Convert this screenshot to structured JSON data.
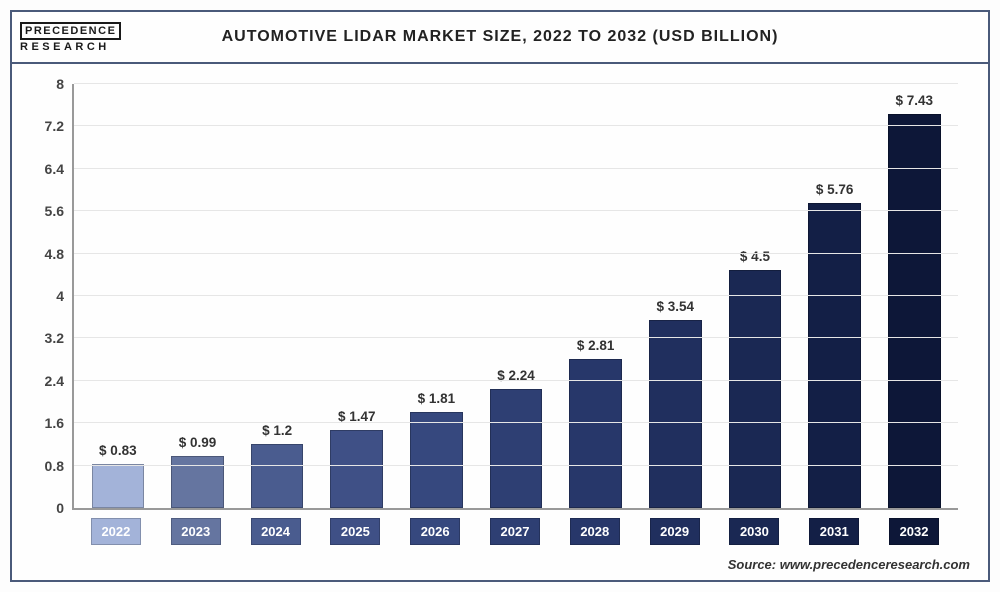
{
  "logo": {
    "top": "PRECEDENCE",
    "bottom": "RESEARCH"
  },
  "title": "AUTOMOTIVE LIDAR MARKET SIZE, 2022 TO 2032 (USD BILLION)",
  "source": "Source: www.precedenceresearch.com",
  "chart": {
    "type": "bar",
    "ylim_max": 8,
    "ytick_step": 0.8,
    "yticks": [
      "0",
      "0.8",
      "1.6",
      "2.4",
      "3.2",
      "4",
      "4.8",
      "5.6",
      "6.4",
      "7.2",
      "8"
    ],
    "categories": [
      "2022",
      "2023",
      "2024",
      "2025",
      "2026",
      "2027",
      "2028",
      "2029",
      "2030",
      "2031",
      "2032"
    ],
    "values": [
      0.83,
      0.99,
      1.2,
      1.47,
      1.81,
      2.24,
      2.81,
      3.54,
      4.5,
      5.76,
      7.43
    ],
    "labels": [
      "$ 0.83",
      "$ 0.99",
      "$ 1.2",
      "$ 1.47",
      "$ 1.81",
      "$ 2.24",
      "$ 2.81",
      "$ 3.54",
      "$ 4.5",
      "$ 5.76",
      "$ 7.43"
    ],
    "bar_colors": [
      "#a3b3d9",
      "#6575a0",
      "#4a5c8f",
      "#3f5086",
      "#36487e",
      "#2e3f73",
      "#27376a",
      "#202f5e",
      "#1a2853",
      "#131f46",
      "#0d1738"
    ],
    "xlabel_colors": [
      "#a3b3d9",
      "#6575a0",
      "#4a5c8f",
      "#3f5086",
      "#36487e",
      "#2e3f73",
      "#27376a",
      "#202f5e",
      "#1a2853",
      "#131f46",
      "#0d1738"
    ],
    "grid_color": "#e6e6e6",
    "axis_color": "#999999",
    "background_color": "#fefefe"
  }
}
